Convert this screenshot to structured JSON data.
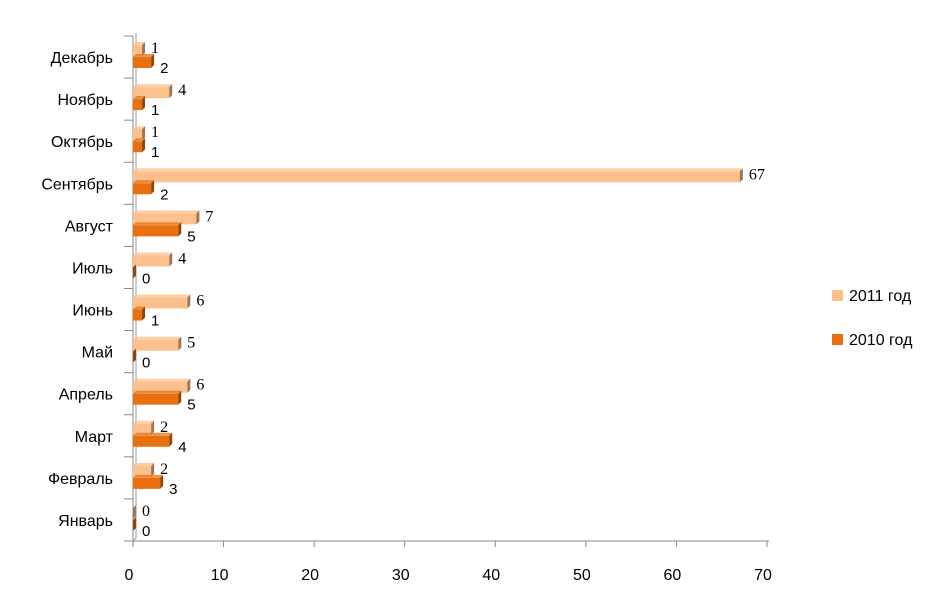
{
  "chart_data": {
    "type": "bar",
    "orientation": "horizontal",
    "categories": [
      "Январь",
      "Февраль",
      "Март",
      "Апрель",
      "Май",
      "Июнь",
      "Июль",
      "Август",
      "Сентябрь",
      "Октябрь",
      "Ноябрь",
      "Декабрь"
    ],
    "series": [
      {
        "name": "2011 год",
        "color": "#FCC08C",
        "values": [
          0,
          2,
          2,
          6,
          5,
          6,
          4,
          7,
          67,
          1,
          4,
          1
        ]
      },
      {
        "name": "2010 год",
        "color": "#E8700F",
        "values": [
          0,
          3,
          4,
          5,
          0,
          1,
          0,
          5,
          2,
          1,
          1,
          2
        ]
      }
    ],
    "xlim": [
      0,
      70
    ],
    "xticks": [
      0,
      10,
      20,
      30,
      40,
      50,
      60,
      70
    ],
    "title": "",
    "xlabel": "",
    "ylabel": "",
    "grid": false,
    "legend_position": "right"
  }
}
